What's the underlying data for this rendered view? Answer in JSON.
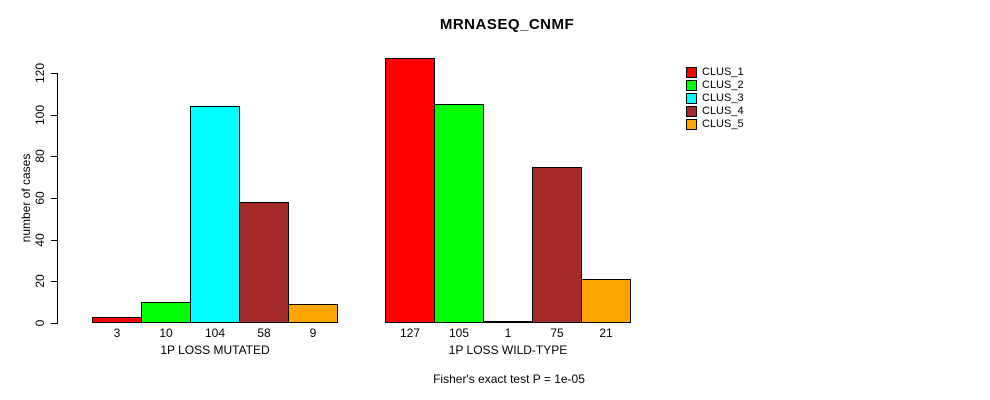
{
  "chart_data": {
    "type": "bar",
    "title": "MRNASEQ_CNMF",
    "ylabel": "number of cases",
    "ylim": [
      0,
      120
    ],
    "yticks": [
      0,
      20,
      40,
      60,
      80,
      100,
      120
    ],
    "grid": false,
    "legend_position": "right-outside",
    "categories": [
      "1P LOSS MUTATED",
      "1P LOSS WILD-TYPE"
    ],
    "groups": [
      {
        "label": "1P LOSS MUTATED",
        "values": [
          3,
          10,
          104,
          58,
          9
        ]
      },
      {
        "label": "1P LOSS WILD-TYPE",
        "values": [
          127,
          105,
          1,
          75,
          21
        ]
      }
    ],
    "series": [
      {
        "name": "CLUS_1",
        "color": "#FF0000"
      },
      {
        "name": "CLUS_2",
        "color": "#00FF00"
      },
      {
        "name": "CLUS_3",
        "color": "#00FFFF"
      },
      {
        "name": "CLUS_4",
        "color": "#A52A2A"
      },
      {
        "name": "CLUS_5",
        "color": "#FFA500"
      }
    ],
    "bar_value_labels": true,
    "annotation": "Fisher's exact test P = 1e-05",
    "axis_color": "#000000",
    "background_color": "#FFFFFF"
  }
}
